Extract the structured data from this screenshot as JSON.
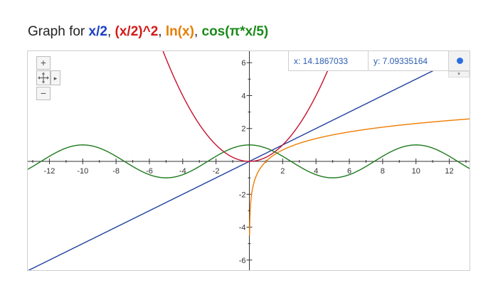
{
  "title": {
    "prefix": "Graph for ",
    "separator": ", ",
    "functions": [
      {
        "label": "x/2",
        "color": "#1a3fc4"
      },
      {
        "label": "(x/2)^2",
        "color": "#d11a1a"
      },
      {
        "label": "ln(x)",
        "color": "#e67e00"
      },
      {
        "label": "cos(π*x/5)",
        "color": "#1a8a1a"
      }
    ]
  },
  "readout": {
    "x": "x: 14.1867033",
    "y": "y: 7.09335164"
  },
  "controls": {
    "zoom_in": "+",
    "zoom_out": "−",
    "pan_right": "▸",
    "expand": "▾"
  },
  "chart_data": {
    "type": "line",
    "xlim": [
      -13.3,
      13.3
    ],
    "ylim": [
      -6.7,
      6.7
    ],
    "x_ticks": [
      -12,
      -10,
      -8,
      -6,
      -4,
      -2,
      2,
      4,
      6,
      8,
      10,
      12
    ],
    "y_ticks": [
      -6,
      -4,
      -2,
      2,
      4,
      6
    ],
    "x_tick_labels": [
      "-12",
      "-10",
      "-8",
      "-6",
      "-4",
      "-2",
      "2",
      "4",
      "6",
      "8",
      "10",
      "12"
    ],
    "y_tick_labels": [
      "-6",
      "-4",
      "-2",
      "2",
      "4",
      "6"
    ],
    "grid": false,
    "series": [
      {
        "name": "x/2",
        "expr": "x/2",
        "color": "#1f3f9f"
      },
      {
        "name": "(x/2)^2",
        "expr": "(x/2)^2",
        "color": "#c8102e"
      },
      {
        "name": "ln(x)",
        "expr": "ln(x)",
        "color": "#ef7d00"
      },
      {
        "name": "cos(π*x/5)",
        "expr": "cos(pi*x/5)",
        "color": "#1b7a1b"
      }
    ]
  }
}
